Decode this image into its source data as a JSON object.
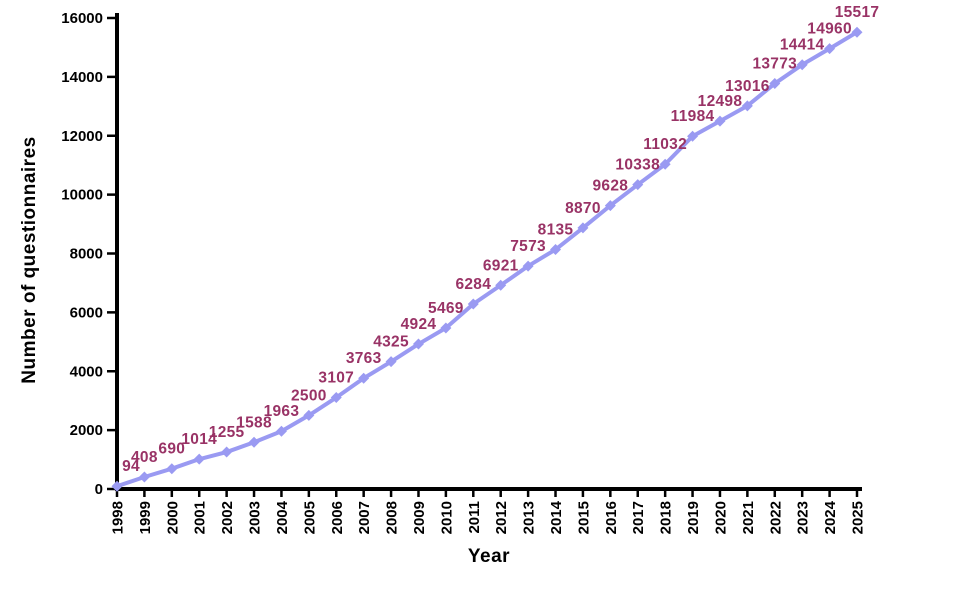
{
  "chart_data": {
    "type": "line",
    "title": "",
    "xlabel": "Year",
    "ylabel": "Number of questionnaires",
    "x": [
      1998,
      1999,
      2000,
      2001,
      2002,
      2003,
      2004,
      2005,
      2006,
      2007,
      2008,
      2009,
      2010,
      2011,
      2012,
      2013,
      2014,
      2015,
      2016,
      2017,
      2018,
      2019,
      2020,
      2021,
      2022,
      2023,
      2024,
      2025
    ],
    "values": [
      94,
      408,
      690,
      1014,
      1255,
      1588,
      1963,
      2500,
      3107,
      3763,
      4325,
      4924,
      5469,
      6284,
      6921,
      7573,
      8135,
      8870,
      9628,
      10338,
      11032,
      11984,
      12498,
      13016,
      13773,
      14414,
      14960,
      15517
    ],
    "yticks": [
      0,
      2000,
      4000,
      6000,
      8000,
      10000,
      12000,
      14000,
      16000
    ],
    "ylim": [
      0,
      16000
    ],
    "grid": false,
    "legend": "none",
    "data_labels_shown": true,
    "marker": "diamond",
    "series_color": "#9a9af2",
    "data_label_color": "#993366",
    "axis_color": "#000000"
  }
}
